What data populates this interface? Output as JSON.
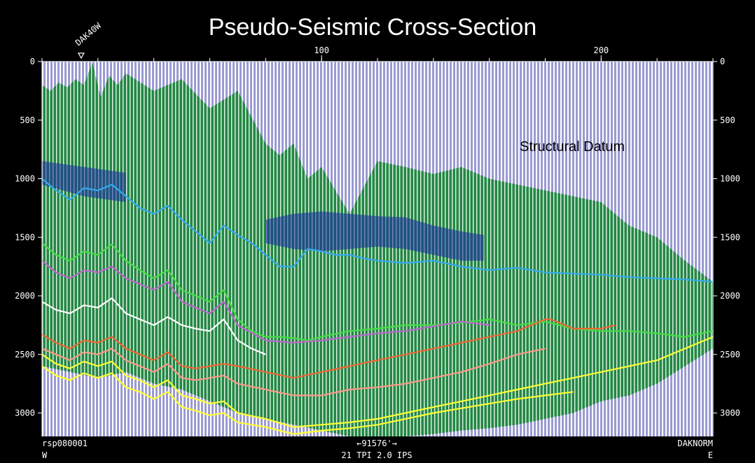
{
  "chart_data": {
    "type": "line",
    "title": "Pseudo-Seismic Cross-Section",
    "xlim": [
      0,
      240
    ],
    "ylim": [
      0,
      3200
    ],
    "x_ticks_top": [
      100,
      200
    ],
    "y_ticks": [
      0,
      500,
      1000,
      1500,
      2000,
      2500,
      3000
    ],
    "well_marker": {
      "label": "DAK40W",
      "x": 14
    },
    "annotation": "Structural Datum",
    "footer": {
      "left_id": "rsp080001",
      "left_dir": "W",
      "center_scale": "←91576'→",
      "center_params": "21 TPI   2.0 IPS",
      "right_id": "DAKNORM",
      "right_dir": "E"
    },
    "colors": {
      "background": "#9a9ad2",
      "trace_stripe": "#ffffff",
      "green_fill": "#228844",
      "blue_fill": "#1a2aa8"
    },
    "top_boundary": {
      "x": [
        0,
        3,
        6,
        9,
        12,
        15,
        18,
        21,
        24,
        27,
        30,
        40,
        50,
        60,
        70,
        80,
        85,
        90,
        95,
        100,
        110,
        120,
        130,
        140,
        150,
        160,
        170,
        180,
        190,
        200,
        210,
        220,
        230,
        240
      ],
      "y": [
        200,
        250,
        180,
        220,
        150,
        200,
        10,
        300,
        120,
        200,
        100,
        250,
        150,
        400,
        250,
        700,
        800,
        700,
        1000,
        900,
        1300,
        850,
        900,
        960,
        900,
        1000,
        1050,
        1100,
        1150,
        1200,
        1400,
        1500,
        1700,
        1880
      ]
    },
    "bottom_boundary": {
      "x": [
        0,
        10,
        20,
        30,
        40,
        50,
        60,
        70,
        80,
        90,
        100,
        110,
        120,
        130,
        140,
        150,
        160,
        170,
        180,
        190,
        200,
        210,
        220,
        230,
        240
      ],
      "y": [
        2600,
        2650,
        2700,
        2650,
        2750,
        2800,
        2900,
        3000,
        3050,
        3100,
        3150,
        3200,
        3200,
        3200,
        3180,
        3150,
        3130,
        3100,
        3050,
        3000,
        2900,
        2850,
        2750,
        2600,
        2450
      ]
    },
    "series": [
      {
        "color": "#33aaee",
        "x": [
          0,
          5,
          10,
          15,
          20,
          25,
          30,
          35,
          40,
          45,
          50,
          55,
          60,
          65,
          70,
          75,
          80,
          85,
          90,
          95,
          100,
          105,
          110,
          115,
          120,
          130,
          140,
          150,
          160,
          170,
          180,
          190,
          200,
          210,
          220,
          230,
          240
        ],
        "y": [
          1000,
          1100,
          1180,
          1080,
          1100,
          1050,
          1150,
          1250,
          1300,
          1230,
          1350,
          1450,
          1550,
          1400,
          1480,
          1550,
          1650,
          1750,
          1750,
          1600,
          1620,
          1650,
          1650,
          1680,
          1700,
          1720,
          1700,
          1750,
          1780,
          1760,
          1800,
          1810,
          1820,
          1840,
          1850,
          1860,
          1880
        ]
      },
      {
        "color": "#44dd44",
        "x": [
          0,
          5,
          10,
          15,
          20,
          25,
          30,
          35,
          40,
          45,
          50,
          55,
          60,
          65,
          70,
          75,
          80,
          85,
          90,
          95,
          100,
          110,
          120,
          130,
          140,
          150,
          160,
          170,
          180,
          190,
          200,
          210,
          220,
          230,
          240
        ],
        "y": [
          1550,
          1650,
          1700,
          1620,
          1650,
          1560,
          1700,
          1780,
          1850,
          1780,
          1950,
          2000,
          2050,
          1950,
          2200,
          2300,
          2350,
          2350,
          2360,
          2380,
          2350,
          2300,
          2280,
          2250,
          2250,
          2230,
          2200,
          2250,
          2220,
          2280,
          2300,
          2300,
          2320,
          2350,
          2300
        ]
      },
      {
        "color": "#bb66cc",
        "x": [
          0,
          5,
          10,
          15,
          20,
          25,
          30,
          35,
          40,
          45,
          50,
          55,
          60,
          65,
          70,
          80,
          90,
          100,
          110,
          120,
          130,
          140,
          150,
          160
        ],
        "y": [
          1700,
          1800,
          1850,
          1780,
          1800,
          1750,
          1850,
          1900,
          1950,
          1880,
          2050,
          2100,
          2150,
          2050,
          2250,
          2380,
          2400,
          2380,
          2350,
          2320,
          2300,
          2260,
          2220,
          2250
        ]
      },
      {
        "color": "#ffffff",
        "x": [
          0,
          5,
          10,
          15,
          20,
          25,
          30,
          35,
          40,
          45,
          50,
          55,
          60,
          65,
          70,
          75,
          80
        ],
        "y": [
          2050,
          2120,
          2150,
          2080,
          2100,
          2020,
          2150,
          2200,
          2250,
          2180,
          2250,
          2280,
          2300,
          2200,
          2380,
          2450,
          2500
        ]
      },
      {
        "color": "#ee6633",
        "x": [
          0,
          5,
          10,
          15,
          20,
          25,
          30,
          35,
          40,
          45,
          50,
          55,
          60,
          65,
          70,
          80,
          90,
          100,
          110,
          120,
          130,
          140,
          150,
          160,
          170,
          180,
          182,
          190,
          200,
          205
        ],
        "y": [
          2330,
          2400,
          2450,
          2380,
          2400,
          2350,
          2450,
          2500,
          2550,
          2480,
          2600,
          2620,
          2600,
          2580,
          2600,
          2650,
          2700,
          2650,
          2600,
          2550,
          2500,
          2450,
          2400,
          2350,
          2300,
          2200,
          2200,
          2280,
          2280,
          2250
        ]
      },
      {
        "color": "#ff9988",
        "x": [
          0,
          5,
          10,
          15,
          20,
          25,
          30,
          35,
          40,
          45,
          50,
          55,
          60,
          65,
          70,
          80,
          90,
          100,
          110,
          120,
          130,
          140,
          150,
          160,
          170,
          180
        ],
        "y": [
          2450,
          2500,
          2550,
          2480,
          2500,
          2450,
          2550,
          2600,
          2650,
          2580,
          2700,
          2720,
          2700,
          2680,
          2750,
          2800,
          2850,
          2850,
          2800,
          2780,
          2750,
          2700,
          2650,
          2580,
          2500,
          2450
        ]
      },
      {
        "color": "#ffff33",
        "x": [
          0,
          5,
          10,
          15,
          20,
          25,
          30,
          35,
          40,
          45,
          50,
          55,
          60,
          65,
          70,
          80,
          90,
          100,
          110,
          120,
          130,
          140,
          150,
          160,
          170,
          180,
          190,
          200,
          210,
          220,
          230,
          240
        ],
        "y": [
          2500,
          2580,
          2620,
          2560,
          2600,
          2560,
          2680,
          2720,
          2780,
          2720,
          2850,
          2880,
          2920,
          2900,
          3000,
          3050,
          3120,
          3100,
          3080,
          3050,
          3000,
          2950,
          2900,
          2850,
          2800,
          2750,
          2700,
          2650,
          2600,
          2550,
          2450,
          2350
        ]
      },
      {
        "color": "#ffff33",
        "x": [
          0,
          5,
          10,
          15,
          20,
          25,
          30,
          35,
          40,
          45,
          50,
          55,
          60,
          65,
          70,
          80,
          90,
          100,
          110,
          120,
          130,
          140,
          150,
          160,
          170,
          180,
          190
        ],
        "y": [
          2600,
          2680,
          2720,
          2660,
          2700,
          2660,
          2780,
          2820,
          2880,
          2820,
          2950,
          2980,
          3020,
          3000,
          3080,
          3120,
          3180,
          3150,
          3130,
          3100,
          3050,
          3000,
          2960,
          2920,
          2880,
          2850,
          2820
        ]
      }
    ]
  }
}
